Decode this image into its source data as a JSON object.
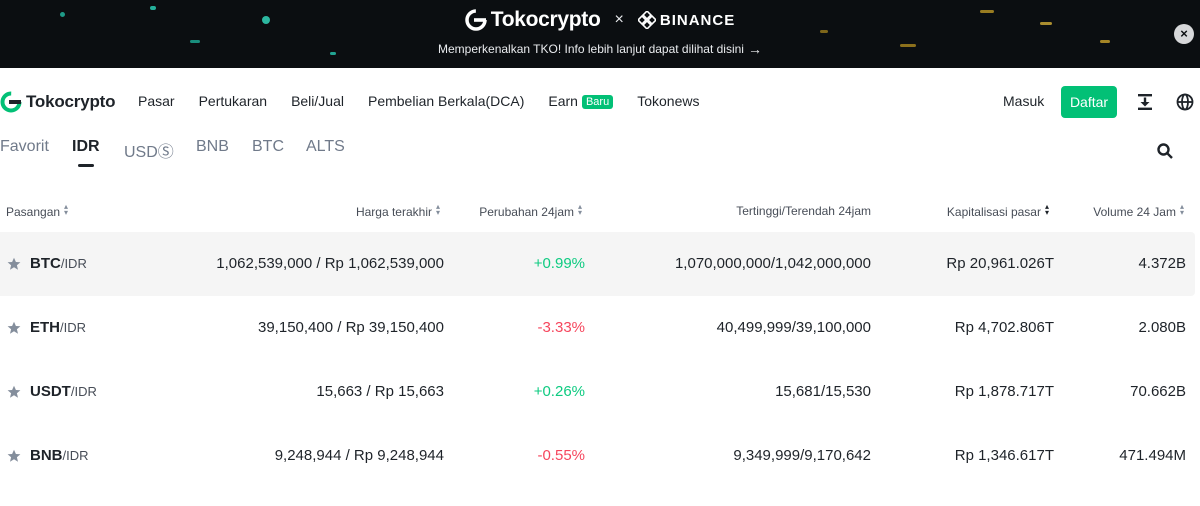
{
  "banner": {
    "brand_left": "Tokocrypto",
    "brand_sep": "×",
    "brand_right": "BINANCE",
    "message": "Memperkenalkan TKO! Info lebih lanjut dapat dilihat disini",
    "close_icon": "close-icon"
  },
  "nav": {
    "logo": "Tokocrypto",
    "menu": [
      "Pasar",
      "Pertukaran",
      "Beli/Jual",
      "Pembelian Berkala(DCA)",
      "Earn",
      "Tokonews"
    ],
    "earn_badge": "Baru",
    "login": "Masuk",
    "register": "Daftar",
    "icons": [
      "download-icon",
      "globe-icon"
    ]
  },
  "tabs": {
    "items": [
      "Favorit",
      "IDR",
      "USDⓈ",
      "BNB",
      "BTC",
      "ALTS"
    ],
    "active": "IDR",
    "search_icon": "search-icon"
  },
  "table": {
    "headers": {
      "pair": "Pasangan",
      "last_price": "Harga terakhir",
      "change": "Perubahan 24jam",
      "high_low": "Tertinggi/Terendah 24jam",
      "market_cap": "Kapitalisasi pasar",
      "volume": "Volume 24 Jam"
    },
    "rows": [
      {
        "base": "BTC",
        "quote": "/IDR",
        "price": "1,062,539,000 / Rp 1,062,539,000",
        "change": "+0.99%",
        "high_low": "1,070,000,000/1,042,000,000",
        "market_cap": "Rp 20,961.026T",
        "volume": "4.372B"
      },
      {
        "base": "ETH",
        "quote": "/IDR",
        "price": "39,150,400 / Rp 39,150,400",
        "change": "-3.33%",
        "high_low": "40,499,999/39,100,000",
        "market_cap": "Rp 4,702.806T",
        "volume": "2.080B"
      },
      {
        "base": "USDT",
        "quote": "/IDR",
        "price": "15,663 / Rp 15,663",
        "change": "+0.26%",
        "high_low": "15,681/15,530",
        "market_cap": "Rp 1,878.717T",
        "volume": "70.662B"
      },
      {
        "base": "BNB",
        "quote": "/IDR",
        "price": "9,248,944 / Rp 9,248,944",
        "change": "-0.55%",
        "high_low": "9,349,999/9,170,642",
        "market_cap": "Rp 1,346.617T",
        "volume": "471.494M"
      }
    ]
  },
  "colors": {
    "brand_green": "#02c076",
    "positive": "#0ecb81",
    "negative": "#f6465d",
    "banner_bg": "#0b0e11"
  }
}
